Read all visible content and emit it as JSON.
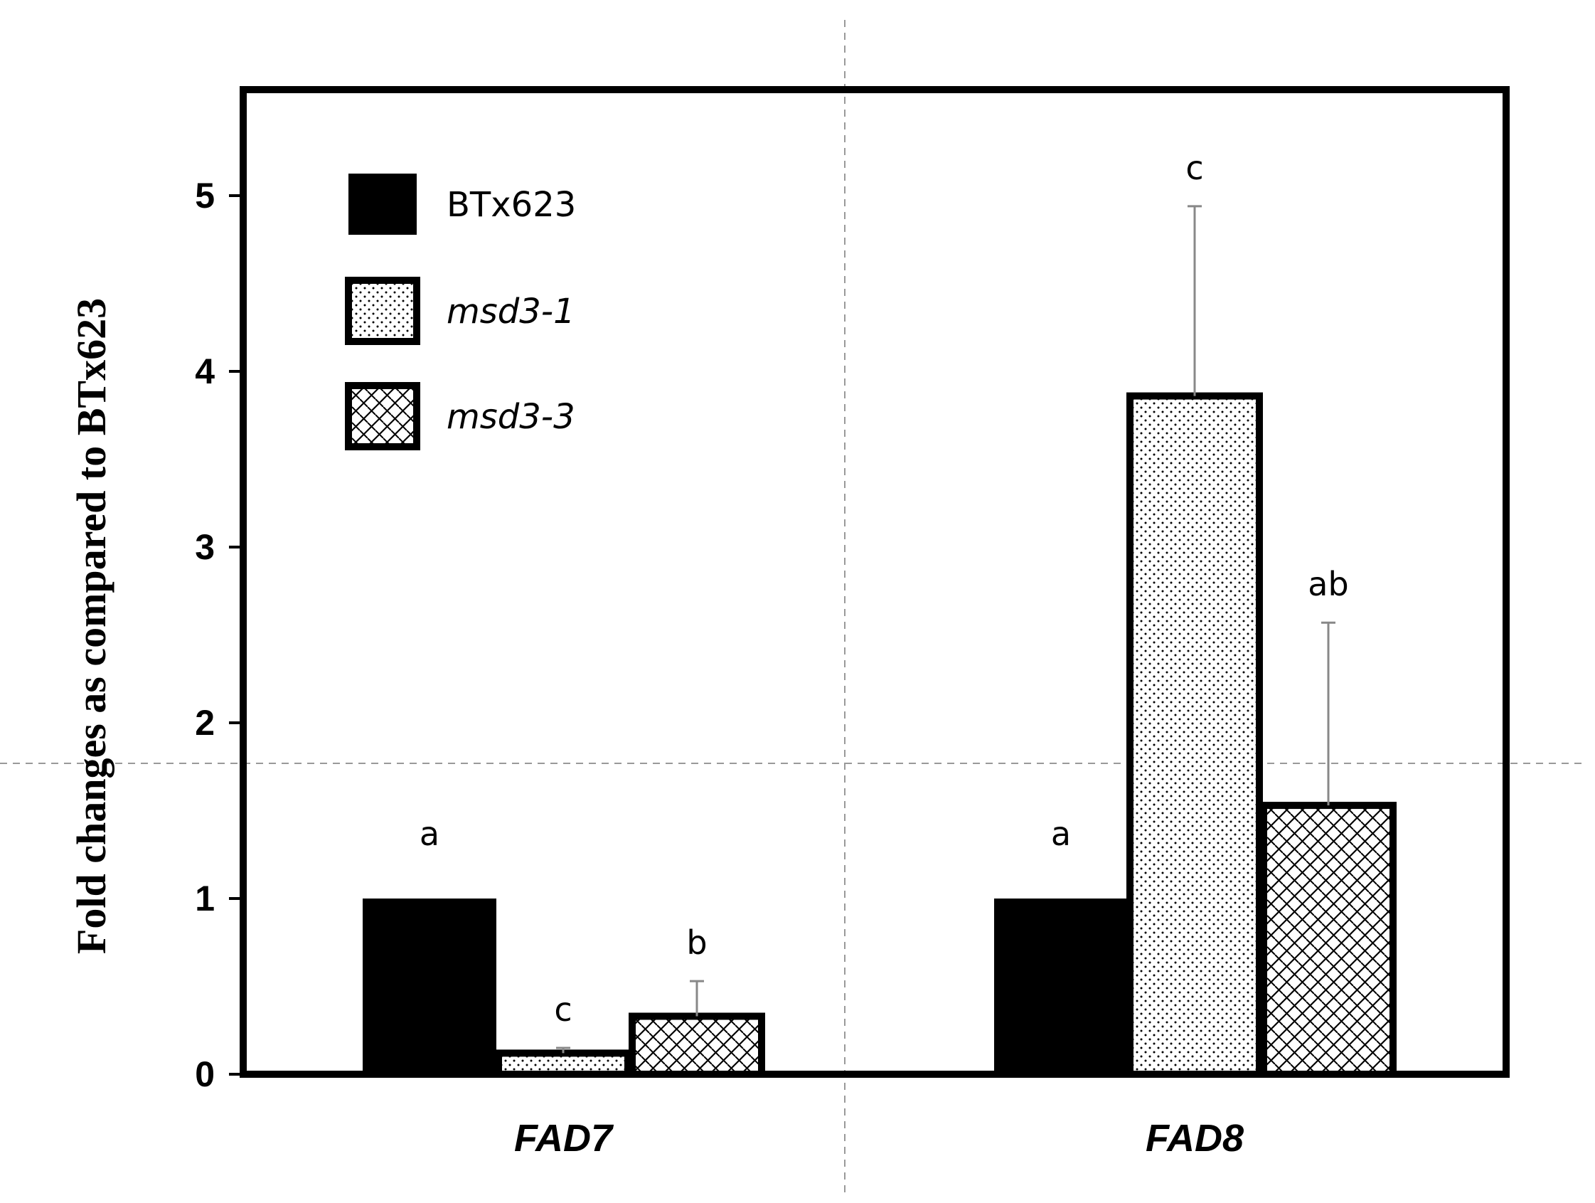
{
  "chart_data": {
    "type": "bar",
    "title": "",
    "xlabel": "",
    "ylabel": "Fold changes as compared to BTx623",
    "ylim": [
      0,
      5.6
    ],
    "yticks": [
      0,
      1,
      2,
      3,
      4,
      5
    ],
    "categories": [
      "FAD7",
      "FAD8"
    ],
    "series": [
      {
        "name": "BTx623",
        "pattern": "solid",
        "values": [
          1.0,
          1.0
        ],
        "errors": [
          0,
          0
        ],
        "significance": [
          "a",
          "a"
        ]
      },
      {
        "name": "msd3-1",
        "pattern": "dots",
        "values": [
          0.12,
          3.86
        ],
        "errors": [
          0.03,
          1.08
        ],
        "significance": [
          "c",
          "c"
        ]
      },
      {
        "name": "msd3-3",
        "pattern": "hatch",
        "values": [
          0.33,
          1.53
        ],
        "errors": [
          0.2,
          1.04
        ],
        "significance": [
          "b",
          "ab"
        ]
      }
    ],
    "legend": {
      "placement": "top-left"
    },
    "grid": false,
    "colors": {
      "fill": "#000000",
      "pattern_bg": "#ffffff",
      "error_bar": "#888888",
      "guide_line": "#999999"
    }
  }
}
